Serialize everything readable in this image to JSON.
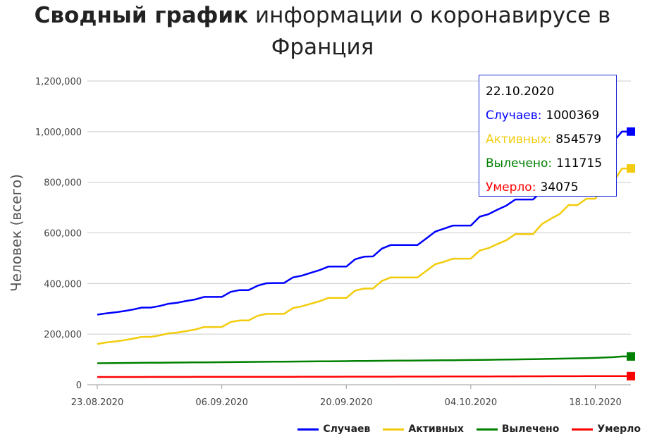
{
  "title": {
    "bold": "Сводный график",
    "rest": "информации о коронавирусе в",
    "line2": "Франция"
  },
  "chart_data": {
    "type": "line",
    "ylabel": "Человек (всего)",
    "xlabel": "",
    "ylim": [
      0,
      1200000
    ],
    "y_ticks": [
      "0",
      "200,000",
      "400,000",
      "600,000",
      "800,000",
      "1,000,000",
      "1,200,000"
    ],
    "x_ticks": [
      "23.08.2020",
      "06.09.2020",
      "20.09.2020",
      "04.10.2020",
      "18.10.2020"
    ],
    "x": [
      "23.08",
      "24.08",
      "25.08",
      "26.08",
      "27.08",
      "28.08",
      "29.08",
      "30.08",
      "31.08",
      "01.09",
      "02.09",
      "03.09",
      "04.09",
      "05.09",
      "06.09",
      "07.09",
      "08.09",
      "09.09",
      "10.09",
      "11.09",
      "12.09",
      "13.09",
      "14.09",
      "15.09",
      "16.09",
      "17.09",
      "18.09",
      "19.09",
      "20.09",
      "21.09",
      "22.09",
      "23.09",
      "24.09",
      "25.09",
      "26.09",
      "27.09",
      "28.09",
      "29.09",
      "30.09",
      "01.10",
      "02.10",
      "03.10",
      "04.10",
      "05.10",
      "06.10",
      "07.10",
      "08.10",
      "09.10",
      "10.10",
      "11.10",
      "12.10",
      "13.10",
      "14.10",
      "15.10",
      "16.10",
      "17.10",
      "18.10",
      "19.10",
      "20.10",
      "21.10",
      "22.10"
    ],
    "grid": true,
    "legend_position": "bottom-right",
    "series": [
      {
        "name": "Случаев",
        "color": "#0000ff",
        "values": [
          277000,
          282000,
          286000,
          291000,
          297000,
          305000,
          305000,
          311000,
          320000,
          324000,
          331000,
          337000,
          347000,
          347000,
          347000,
          367000,
          374000,
          374000,
          391000,
          401000,
          402000,
          402000,
          424000,
          431000,
          442000,
          453000,
          467000,
          467000,
          467000,
          496000,
          506000,
          507000,
          538000,
          552000,
          552000,
          552000,
          552000,
          578000,
          605000,
          617000,
          629000,
          629000,
          629000,
          664000,
          674000,
          692000,
          708000,
          732000,
          732000,
          732000,
          765000,
          790000,
          800000,
          833000,
          855000,
          855000,
          899000,
          940000,
          960000,
          1000369,
          1000369
        ]
      },
      {
        "name": "Активных",
        "color": "#f2cc0c",
        "values": [
          161000,
          167000,
          171000,
          176000,
          182000,
          189000,
          189000,
          195000,
          203000,
          206000,
          212000,
          218000,
          228000,
          228000,
          228000,
          248000,
          254000,
          254000,
          272000,
          280000,
          280000,
          280000,
          303000,
          310000,
          320000,
          330000,
          343000,
          343000,
          343000,
          372000,
          380000,
          380000,
          410000,
          424000,
          424000,
          424000,
          424000,
          450000,
          476000,
          486000,
          498000,
          498000,
          498000,
          530000,
          540000,
          556000,
          571000,
          595000,
          595000,
          595000,
          635000,
          656000,
          675000,
          710000,
          710000,
          735000,
          735000,
          790000,
          800000,
          854579,
          854579
        ]
      },
      {
        "name": "Вылечено",
        "color": "#008000",
        "values": [
          85000,
          85300,
          85600,
          85900,
          86200,
          86500,
          86800,
          87100,
          87400,
          87700,
          88000,
          88300,
          88600,
          88900,
          89200,
          89500,
          89800,
          90100,
          90400,
          90700,
          91000,
          91300,
          91600,
          91900,
          92200,
          92500,
          92800,
          93100,
          93400,
          93700,
          94000,
          94300,
          94600,
          94900,
          95200,
          95500,
          95800,
          96100,
          96400,
          96700,
          97000,
          97400,
          97800,
          98200,
          98600,
          99000,
          99500,
          100000,
          100500,
          101000,
          101700,
          102400,
          103100,
          103800,
          104500,
          105200,
          106000,
          107500,
          109000,
          111715,
          111715
        ]
      },
      {
        "name": "Умерло",
        "color": "#ff0000",
        "values": [
          30500,
          30550,
          30600,
          30650,
          30700,
          30750,
          30800,
          30850,
          30900,
          30950,
          31000,
          31050,
          31100,
          31150,
          31200,
          31250,
          31300,
          31350,
          31400,
          31450,
          31500,
          31550,
          31600,
          31650,
          31700,
          31750,
          31800,
          31850,
          31900,
          31950,
          32000,
          32050,
          32100,
          32150,
          32200,
          32250,
          32300,
          32350,
          32400,
          32450,
          32500,
          32600,
          32700,
          32800,
          32900,
          33000,
          33100,
          33200,
          33300,
          33400,
          33500,
          33600,
          33700,
          33750,
          33800,
          33850,
          33900,
          33950,
          34000,
          34075,
          34075
        ]
      }
    ]
  },
  "tooltip": {
    "date": "22.10.2020",
    "rows": [
      {
        "label": "Случаев:",
        "value": "1000369",
        "color": "#0000ff"
      },
      {
        "label": "Активных:",
        "value": "854579",
        "color": "#f2cc0c"
      },
      {
        "label": "Вылечено:",
        "value": "111715",
        "color": "#008000"
      },
      {
        "label": "Умерло:",
        "value": "34075",
        "color": "#ff0000"
      }
    ]
  }
}
